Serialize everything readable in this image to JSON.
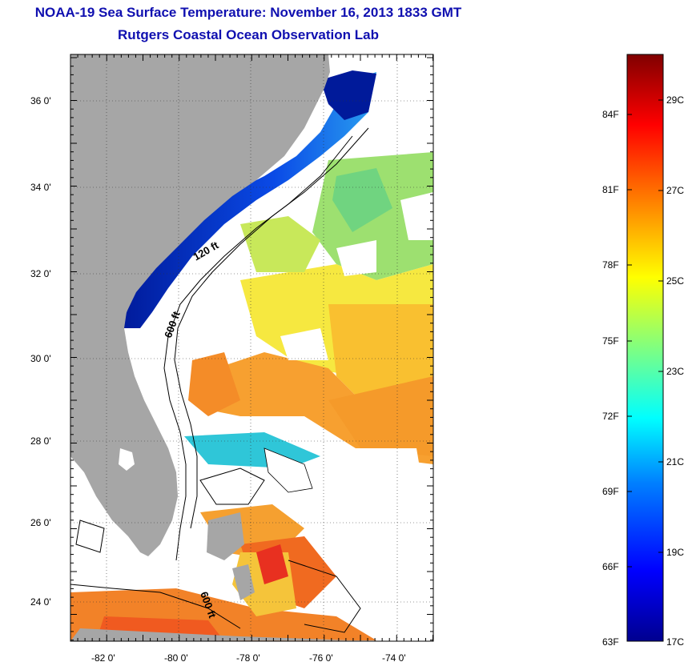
{
  "title": {
    "line1": "NOAA-19 Sea Surface Temperature:  November 16, 2013 1833 GMT",
    "line2": "Rutgers Coastal Ocean Observation Lab"
  },
  "map": {
    "lat_labels": [
      "36 0'",
      "34 0'",
      "32 0'",
      "30 0'",
      "28 0'",
      "26 0'",
      "24 0'"
    ],
    "lon_labels": [
      "-82 0'",
      "-80 0'",
      "-78 0'",
      "-76 0'",
      "-74 0'"
    ],
    "contour_labels": [
      "120 ft",
      "600 ft",
      "600 ft"
    ],
    "colors": {
      "land": "#a6a6a6",
      "no_data": "#ffffff",
      "cold_shelf": "#0a2cd6"
    }
  },
  "colorbar": {
    "f_labels": [
      "84F",
      "81F",
      "78F",
      "75F",
      "72F",
      "69F",
      "66F",
      "63F"
    ],
    "c_labels": [
      "29C",
      "27C",
      "25C",
      "23C",
      "21C",
      "19C",
      "17C"
    ],
    "min_c": 17,
    "max_c": 30,
    "colormap": [
      "#00008f",
      "#0000ff",
      "#0080ff",
      "#00ffff",
      "#80ff80",
      "#ffff00",
      "#ff8000",
      "#ff0000",
      "#800000"
    ]
  }
}
